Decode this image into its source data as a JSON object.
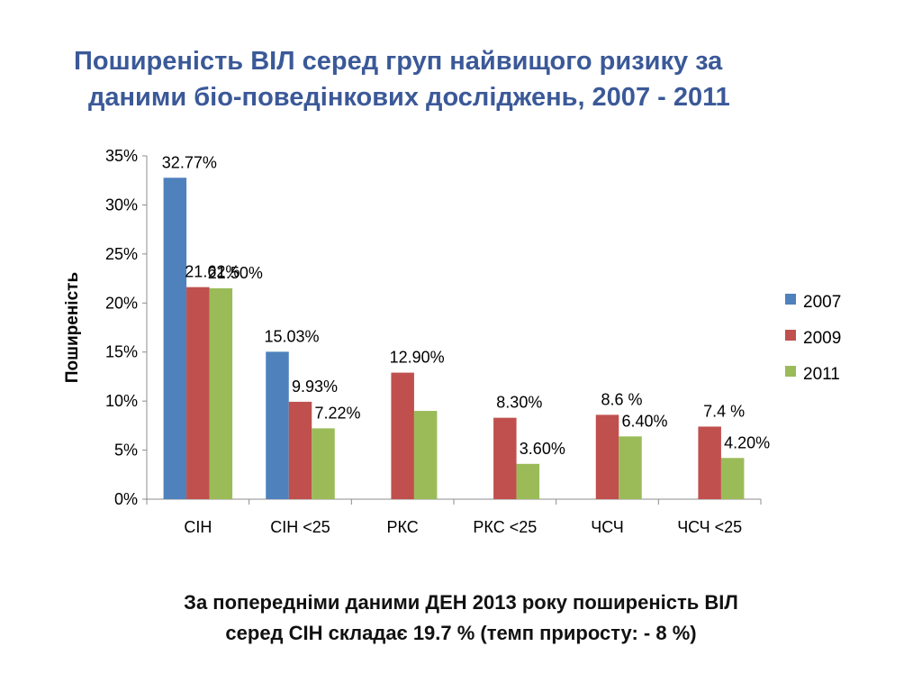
{
  "title": {
    "line1": "Поширеність ВІЛ серед груп найвищого ризику за",
    "line2": "даними біо-поведінкових досліджень, 2007 - 2011"
  },
  "footnote": {
    "line1": "За попередніми даними ДЕН 2013 року поширеність ВІЛ",
    "line2": "серед СІН складає 19.7 % (темп приросту:  - 8 %)"
  },
  "colors": {
    "2007": "#4F81BD",
    "2009": "#C0504D",
    "2011": "#9BBB59"
  },
  "chart_data": {
    "type": "bar",
    "ylabel": "Поширеність",
    "ylim": [
      0,
      35
    ],
    "yticks": [
      "0%",
      "5%",
      "10%",
      "15%",
      "20%",
      "25%",
      "30%",
      "35%"
    ],
    "grid": false,
    "legend": "right",
    "categories": [
      "СІН",
      "СІН <25",
      "РКС",
      "РКС <25",
      "ЧСЧ",
      "ЧСЧ <25"
    ],
    "series": [
      {
        "name": "2007",
        "values": [
          32.77,
          15.03,
          null,
          null,
          null,
          null
        ],
        "labels": [
          "32.77%",
          "15.03%",
          "",
          "",
          "",
          ""
        ]
      },
      {
        "name": "2009",
        "values": [
          21.62,
          9.93,
          12.9,
          8.3,
          8.6,
          7.4
        ],
        "labels": [
          "21.62%",
          "9.93%",
          "12.90%",
          "8.30%",
          "8.6 %",
          "7.4 %"
        ]
      },
      {
        "name": "2011",
        "values": [
          21.5,
          7.22,
          9.0,
          3.6,
          6.4,
          4.2
        ],
        "labels": [
          "21.50%",
          "7.22%",
          "",
          "3.60%",
          "6.40%",
          "4.20%"
        ]
      }
    ]
  }
}
